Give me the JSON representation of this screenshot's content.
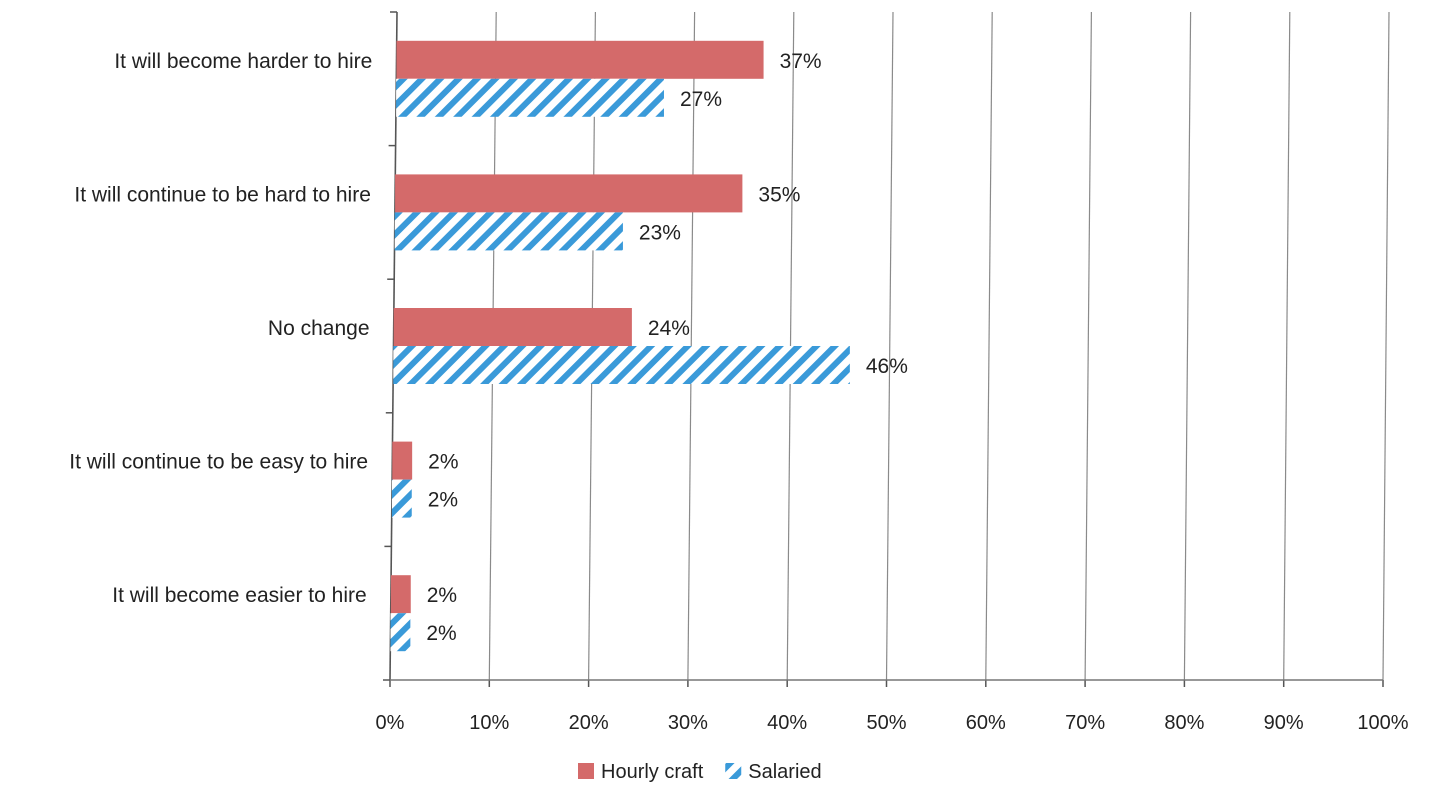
{
  "chart_data": {
    "type": "bar",
    "orientation": "horizontal",
    "categories": [
      "It will become harder to hire",
      "It will continue to be hard to hire",
      "No change",
      "It will continue to be easy to hire",
      "It will become easier to hire"
    ],
    "series": [
      {
        "name": "Hourly craft",
        "color": "#d46a6a",
        "pattern": "solid",
        "values": [
          37,
          35,
          24,
          2,
          2
        ],
        "labels": [
          "37%",
          "35%",
          "24%",
          "2%",
          "2%"
        ]
      },
      {
        "name": "Salaried",
        "color": "#3a9ad9",
        "pattern": "diagonal-hatch",
        "values": [
          27,
          23,
          46,
          2,
          2
        ],
        "labels": [
          "27%",
          "23%",
          "46%",
          "2%",
          "2%"
        ]
      }
    ],
    "xlim": [
      0,
      100
    ],
    "xticks": [
      "0%",
      "10%",
      "20%",
      "30%",
      "40%",
      "50%",
      "60%",
      "70%",
      "80%",
      "90%",
      "100%"
    ],
    "grid": "vertical",
    "legend": "bottom",
    "title": "",
    "xlabel": "",
    "ylabel": ""
  }
}
